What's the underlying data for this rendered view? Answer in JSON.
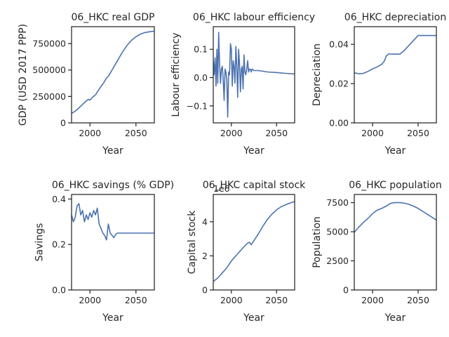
{
  "figure": {
    "background": "#ffffff"
  },
  "chart_data": [
    {
      "type": "line",
      "title": "06_HKC real GDP",
      "xlabel": "Year",
      "ylabel": "GDP (USD 2017 PPP)",
      "xlim": [
        1980,
        2070
      ],
      "ylim": [
        0,
        910000
      ],
      "xticks": [
        2000,
        2050
      ],
      "yticks": [
        0,
        250000,
        500000,
        750000
      ],
      "ytick_labels": [
        "0",
        "250000",
        "500000",
        "750000"
      ],
      "offset_text": "",
      "series": [
        {
          "color": "#4c72b0",
          "x": [
            1980,
            1983,
            1986,
            1989,
            1992,
            1995,
            1998,
            2000,
            2003,
            2006,
            2009,
            2012,
            2015,
            2016,
            2018,
            2020,
            2023,
            2026,
            2030,
            2035,
            2040,
            2045,
            2050,
            2055,
            2060,
            2065,
            2070
          ],
          "y": [
            90000,
            105000,
            125000,
            150000,
            175000,
            200000,
            222000,
            215000,
            245000,
            265000,
            305000,
            345000,
            380000,
            395000,
            425000,
            440000,
            485000,
            530000,
            590000,
            665000,
            730000,
            780000,
            815000,
            840000,
            855000,
            862000,
            868000
          ]
        }
      ]
    },
    {
      "type": "line",
      "title": "06_HKC labour efficiency",
      "xlabel": "Year",
      "ylabel": "Labour efficiency",
      "xlim": [
        1980,
        2070
      ],
      "ylim": [
        -0.16,
        0.18
      ],
      "xticks": [
        2000,
        2050
      ],
      "yticks": [
        -0.1,
        0.0,
        0.1
      ],
      "ytick_labels": [
        "−0.1",
        "0.0",
        "0.1"
      ],
      "offset_text": "",
      "series": [
        {
          "color": "#4c72b0",
          "x": [
            1980,
            1981,
            1982,
            1983,
            1984,
            1985,
            1986,
            1987,
            1988,
            1989,
            1990,
            1991,
            1992,
            1993,
            1994,
            1995,
            1996,
            1997,
            1998,
            1999,
            2000,
            2001,
            2002,
            2003,
            2004,
            2005,
            2006,
            2007,
            2008,
            2009,
            2010,
            2011,
            2012,
            2013,
            2014,
            2015,
            2016,
            2017,
            2018,
            2019,
            2020,
            2021,
            2022,
            2023,
            2025,
            2030,
            2040,
            2050,
            2060,
            2070
          ],
          "y": [
            0.06,
            0.01,
            0.07,
            -0.03,
            0.1,
            -0.02,
            0.16,
            0.05,
            -0.02,
            0.03,
            0.04,
            -0.01,
            -0.08,
            0.03,
            0.02,
            -0.01,
            -0.14,
            0.02,
            0.01,
            0.12,
            0.1,
            -0.03,
            0.06,
            0.04,
            -0.02,
            0.11,
            0.04,
            -0.07,
            0.1,
            0.05,
            -0.05,
            0.03,
            0.04,
            -0.04,
            0.08,
            0.02,
            0.01,
            0.03,
            0.06,
            0.02,
            0.03,
            0.03,
            0.02,
            0.03,
            0.025,
            0.025,
            0.02,
            0.018,
            0.015,
            0.013
          ]
        }
      ]
    },
    {
      "type": "line",
      "title": "06_HKC depreciation",
      "xlabel": "Year",
      "ylabel": "Depreciation",
      "xlim": [
        1980,
        2070
      ],
      "ylim": [
        0,
        0.049
      ],
      "xticks": [
        2000,
        2050
      ],
      "yticks": [
        0.0,
        0.02,
        0.04
      ],
      "ytick_labels": [
        "0.00",
        "0.02",
        "0.04"
      ],
      "offset_text": "",
      "series": [
        {
          "color": "#4c72b0",
          "x": [
            1980,
            1985,
            1990,
            1995,
            2000,
            2005,
            2010,
            2013,
            2015,
            2018,
            2020,
            2025,
            2030,
            2035,
            2040,
            2045,
            2050,
            2060,
            2070
          ],
          "y": [
            0.0255,
            0.025,
            0.0252,
            0.0262,
            0.0275,
            0.0285,
            0.0298,
            0.0315,
            0.034,
            0.0352,
            0.035,
            0.035,
            0.035,
            0.037,
            0.0395,
            0.042,
            0.0445,
            0.0445,
            0.0445
          ]
        }
      ]
    },
    {
      "type": "line",
      "title": "06_HKC savings (% GDP)",
      "xlabel": "Year",
      "ylabel": "Savings",
      "xlim": [
        1980,
        2070
      ],
      "ylim": [
        0,
        0.42
      ],
      "xticks": [
        2000,
        2050
      ],
      "yticks": [
        0.0,
        0.2,
        0.4
      ],
      "ytick_labels": [
        "0.0",
        "0.2",
        "0.4"
      ],
      "offset_text": "",
      "series": [
        {
          "color": "#4c72b0",
          "x": [
            1980,
            1982,
            1984,
            1986,
            1988,
            1990,
            1992,
            1994,
            1996,
            1998,
            2000,
            2002,
            2004,
            2006,
            2008,
            2010,
            2012,
            2014,
            2016,
            2018,
            2020,
            2022,
            2024,
            2026,
            2028,
            2030,
            2040,
            2050,
            2060,
            2070
          ],
          "y": [
            0.33,
            0.3,
            0.32,
            0.37,
            0.38,
            0.33,
            0.35,
            0.3,
            0.33,
            0.31,
            0.34,
            0.32,
            0.35,
            0.33,
            0.36,
            0.29,
            0.27,
            0.25,
            0.24,
            0.22,
            0.29,
            0.25,
            0.24,
            0.23,
            0.245,
            0.25,
            0.25,
            0.25,
            0.25,
            0.25
          ]
        }
      ]
    },
    {
      "type": "line",
      "title": "06_HKC capital stock",
      "xlabel": "Year",
      "ylabel": "Capital stock",
      "xlim": [
        1980,
        2070
      ],
      "ylim": [
        0,
        5.6
      ],
      "xticks": [
        2000,
        2050
      ],
      "yticks": [
        0,
        2,
        4
      ],
      "ytick_labels": [
        "0",
        "2",
        "4"
      ],
      "offset_text": "1e6",
      "series": [
        {
          "color": "#4c72b0",
          "x": [
            1980,
            1985,
            1990,
            1995,
            2000,
            2005,
            2010,
            2015,
            2018,
            2020,
            2022,
            2025,
            2030,
            2035,
            2040,
            2045,
            2050,
            2055,
            2060,
            2065,
            2070
          ],
          "y": [
            0.5,
            0.7,
            1.0,
            1.3,
            1.7,
            2.0,
            2.3,
            2.6,
            2.75,
            2.8,
            2.65,
            2.9,
            3.3,
            3.75,
            4.15,
            4.45,
            4.7,
            4.88,
            5.0,
            5.1,
            5.18
          ]
        }
      ]
    },
    {
      "type": "line",
      "title": "06_HKC population",
      "xlabel": "Year",
      "ylabel": "Population",
      "xlim": [
        1980,
        2070
      ],
      "ylim": [
        0,
        8200
      ],
      "xticks": [
        2000,
        2050
      ],
      "yticks": [
        0,
        2500,
        5000,
        7500
      ],
      "ytick_labels": [
        "0",
        "2500",
        "5000",
        "7500"
      ],
      "offset_text": "",
      "series": [
        {
          "color": "#4c72b0",
          "x": [
            1980,
            1985,
            1990,
            1995,
            2000,
            2005,
            2010,
            2015,
            2020,
            2025,
            2030,
            2035,
            2040,
            2045,
            2050,
            2055,
            2060,
            2065,
            2070
          ],
          "y": [
            4950,
            5400,
            5800,
            6150,
            6550,
            6850,
            7000,
            7200,
            7450,
            7500,
            7500,
            7450,
            7350,
            7200,
            7000,
            6750,
            6500,
            6250,
            6000
          ]
        }
      ]
    }
  ]
}
